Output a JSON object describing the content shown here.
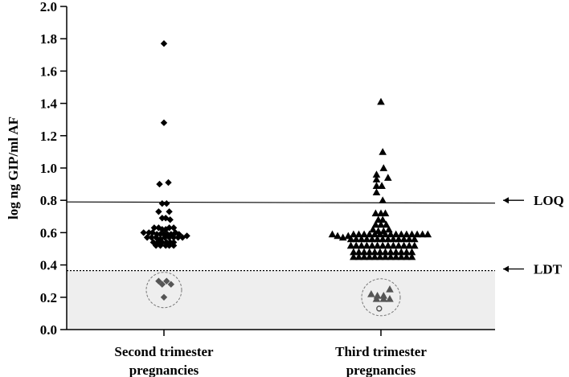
{
  "chart_data": {
    "type": "scatter",
    "ylabel": "log ng GIP/ml AF",
    "ylim": [
      0.0,
      2.0
    ],
    "yticks": [
      "0.0",
      "0.2",
      "0.4",
      "0.6",
      "0.8",
      "1.0",
      "1.2",
      "1.4",
      "1.6",
      "1.8",
      "2.0"
    ],
    "categories": [
      "Second trimester\npregnancies",
      "Third trimester\npregnancies"
    ],
    "category_lines": [
      [
        "Second trimester",
        "pregnancies"
      ],
      [
        "Third trimester",
        "pregnancies"
      ]
    ],
    "reference_lines": [
      {
        "label": "LOQ",
        "y": 0.79,
        "style": "solid"
      },
      {
        "label": "LDT",
        "y": 0.365,
        "style": "dotted"
      }
    ],
    "below_ldt_shaded": true,
    "colors": {
      "points": "#000000",
      "below_ldt_points": "#555555",
      "shade": "#eeeeee",
      "circle": "#777777"
    },
    "series": [
      {
        "category": "Second trimester\npregnancies",
        "marker": "diamond",
        "points": [
          [
            0.0,
            1.77
          ],
          [
            0.0,
            1.28
          ],
          [
            -0.05,
            0.9
          ],
          [
            0.05,
            0.91
          ],
          [
            -0.02,
            0.78
          ],
          [
            0.03,
            0.78
          ],
          [
            -0.06,
            0.73
          ],
          [
            0.06,
            0.73
          ],
          [
            -0.02,
            0.69
          ],
          [
            0.02,
            0.69
          ],
          [
            0.07,
            0.68
          ],
          [
            -0.11,
            0.63
          ],
          [
            -0.06,
            0.63
          ],
          [
            -0.02,
            0.62
          ],
          [
            0.02,
            0.62
          ],
          [
            0.06,
            0.63
          ],
          [
            0.11,
            0.63
          ],
          [
            -0.23,
            0.6
          ],
          [
            -0.17,
            0.6
          ],
          [
            -0.13,
            0.6
          ],
          [
            -0.08,
            0.59
          ],
          [
            -0.04,
            0.59
          ],
          [
            0.0,
            0.59
          ],
          [
            0.04,
            0.59
          ],
          [
            0.08,
            0.59
          ],
          [
            0.13,
            0.6
          ],
          [
            0.17,
            0.59
          ],
          [
            -0.19,
            0.57
          ],
          [
            -0.14,
            0.57
          ],
          [
            -0.09,
            0.57
          ],
          [
            -0.04,
            0.56
          ],
          [
            0.01,
            0.57
          ],
          [
            0.06,
            0.57
          ],
          [
            0.11,
            0.57
          ],
          [
            0.16,
            0.57
          ],
          [
            0.21,
            0.57
          ],
          [
            0.26,
            0.58
          ],
          [
            -0.12,
            0.54
          ],
          [
            -0.07,
            0.54
          ],
          [
            -0.02,
            0.54
          ],
          [
            0.03,
            0.54
          ],
          [
            0.07,
            0.54
          ],
          [
            0.11,
            0.54
          ],
          [
            -0.09,
            0.52
          ],
          [
            -0.04,
            0.52
          ],
          [
            0.02,
            0.52
          ],
          [
            0.06,
            0.52
          ],
          [
            0.11,
            0.52
          ]
        ],
        "below_ldt": [
          [
            -0.06,
            0.3
          ],
          [
            -0.02,
            0.28
          ],
          [
            0.03,
            0.3
          ],
          [
            0.08,
            0.28
          ],
          [
            0.0,
            0.2
          ]
        ]
      },
      {
        "category": "Third trimester\npregnancies",
        "marker": "triangle",
        "points": [
          [
            0.0,
            1.41
          ],
          [
            0.02,
            1.1
          ],
          [
            0.03,
            1.0
          ],
          [
            -0.05,
            0.96
          ],
          [
            -0.05,
            0.93
          ],
          [
            0.08,
            0.94
          ],
          [
            -0.05,
            0.89
          ],
          [
            0.01,
            0.89
          ],
          [
            -0.05,
            0.85
          ],
          [
            0.02,
            0.8
          ],
          [
            -0.06,
            0.72
          ],
          [
            0.0,
            0.72
          ],
          [
            0.05,
            0.72
          ],
          [
            -0.03,
            0.68
          ],
          [
            0.02,
            0.68
          ],
          [
            -0.06,
            0.65
          ],
          [
            0.0,
            0.65
          ],
          [
            0.06,
            0.65
          ],
          [
            -0.09,
            0.62
          ],
          [
            -0.03,
            0.61
          ],
          [
            0.03,
            0.61
          ],
          [
            0.09,
            0.62
          ],
          [
            -0.55,
            0.59
          ],
          [
            -0.49,
            0.58
          ],
          [
            -0.43,
            0.57
          ],
          [
            -0.37,
            0.58
          ],
          [
            -0.31,
            0.59
          ],
          [
            -0.25,
            0.59
          ],
          [
            -0.19,
            0.59
          ],
          [
            -0.13,
            0.59
          ],
          [
            -0.07,
            0.59
          ],
          [
            -0.01,
            0.59
          ],
          [
            0.05,
            0.59
          ],
          [
            0.11,
            0.59
          ],
          [
            0.17,
            0.59
          ],
          [
            0.23,
            0.59
          ],
          [
            0.29,
            0.59
          ],
          [
            0.35,
            0.59
          ],
          [
            0.41,
            0.59
          ],
          [
            0.47,
            0.59
          ],
          [
            0.53,
            0.59
          ],
          [
            -0.34,
            0.56
          ],
          [
            -0.28,
            0.56
          ],
          [
            -0.22,
            0.56
          ],
          [
            -0.16,
            0.56
          ],
          [
            -0.1,
            0.56
          ],
          [
            -0.04,
            0.56
          ],
          [
            0.02,
            0.56
          ],
          [
            0.08,
            0.56
          ],
          [
            0.14,
            0.56
          ],
          [
            0.2,
            0.56
          ],
          [
            0.26,
            0.56
          ],
          [
            0.32,
            0.56
          ],
          [
            0.38,
            0.56
          ],
          [
            -0.34,
            0.52
          ],
          [
            -0.28,
            0.52
          ],
          [
            -0.22,
            0.52
          ],
          [
            -0.16,
            0.52
          ],
          [
            -0.1,
            0.52
          ],
          [
            -0.04,
            0.52
          ],
          [
            0.02,
            0.52
          ],
          [
            0.08,
            0.52
          ],
          [
            0.14,
            0.52
          ],
          [
            0.2,
            0.52
          ],
          [
            0.26,
            0.52
          ],
          [
            0.32,
            0.52
          ],
          [
            0.38,
            0.52
          ],
          [
            -0.31,
            0.48
          ],
          [
            -0.25,
            0.48
          ],
          [
            -0.19,
            0.48
          ],
          [
            -0.13,
            0.48
          ],
          [
            -0.07,
            0.48
          ],
          [
            -0.01,
            0.48
          ],
          [
            0.05,
            0.48
          ],
          [
            0.11,
            0.48
          ],
          [
            0.17,
            0.48
          ],
          [
            0.23,
            0.48
          ],
          [
            0.29,
            0.48
          ],
          [
            0.35,
            0.48
          ],
          [
            -0.31,
            0.45
          ],
          [
            -0.25,
            0.45
          ],
          [
            -0.19,
            0.45
          ],
          [
            -0.13,
            0.45
          ],
          [
            -0.07,
            0.45
          ],
          [
            -0.01,
            0.45
          ],
          [
            0.05,
            0.45
          ],
          [
            0.11,
            0.45
          ],
          [
            0.17,
            0.45
          ],
          [
            0.23,
            0.45
          ],
          [
            0.29,
            0.45
          ],
          [
            0.35,
            0.45
          ]
        ],
        "below_ldt": [
          [
            -0.11,
            0.22
          ],
          [
            -0.04,
            0.21
          ],
          [
            0.03,
            0.21
          ],
          [
            0.1,
            0.25
          ],
          [
            -0.05,
            0.19
          ],
          [
            0.03,
            0.19
          ],
          [
            0.1,
            0.19
          ]
        ],
        "below_ldt_open": [
          [
            -0.02,
            0.13
          ]
        ]
      }
    ]
  }
}
